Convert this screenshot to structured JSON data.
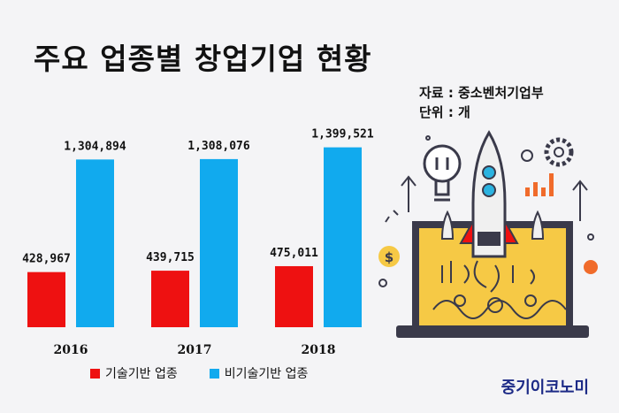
{
  "title": "주요 업종별 창업기업 현황",
  "source_line": "자료 : 중소벤처기업부",
  "unit_line": "단위 : 개",
  "brand": "중기이코노미",
  "colors": {
    "tech": "#ee1111",
    "nontech": "#11aaee"
  },
  "chart_data": {
    "type": "bar",
    "categories": [
      "2016",
      "2017",
      "2018"
    ],
    "series": [
      {
        "name": "기술기반 업종",
        "values": [
          428967,
          439715,
          475011
        ],
        "labels": [
          "428,967",
          "439,715",
          "475,011"
        ]
      },
      {
        "name": "비기술기반 업종",
        "values": [
          1304894,
          1308076,
          1399521
        ],
        "labels": [
          "1,304,894",
          "1,308,076",
          "1,399,521"
        ]
      }
    ],
    "xlabel": "",
    "ylabel": "",
    "ylim": [
      0,
      1500000
    ],
    "grid": false,
    "legend": "bottom"
  }
}
